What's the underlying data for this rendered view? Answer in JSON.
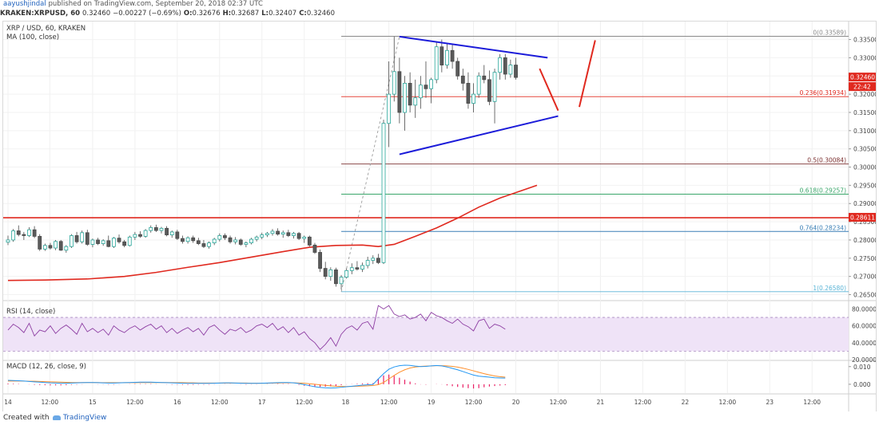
{
  "header": {
    "author": "aayushjindal",
    "published": "published on TradingView.com, September 20, 2018 02:37 UTC"
  },
  "ohlc_line": {
    "symbol": "KRAKEN:XRPUSD, 60",
    "last": "0.32460",
    "change": "−0.00227 (−0.69%)",
    "open_label": "O:",
    "open": "0.32676",
    "high_label": "H:",
    "high": "0.32687",
    "low_label": "L:",
    "low": "0.32407",
    "close_label": "C:",
    "close": "0.32460"
  },
  "legend": {
    "title": "XRP / USD, 60, KRAKEN",
    "ma": "MA (100, close)"
  },
  "colors": {
    "up": "#26a69a",
    "up_fill": "#ffffff",
    "candle": "#4a4a4a",
    "ma": "#e0291f",
    "trend": "#1b1bd9",
    "arrow": "#e0291f",
    "hline": "#e0291f",
    "rsi": "#8e3fa3",
    "rsi_band": "#efe3f7",
    "macd": "#2196f3",
    "signal": "#ff8f2c",
    "hist": "#e91e63"
  },
  "chart_data": [
    {
      "type": "candlestick",
      "title": "XRP / USD, 60, KRAKEN",
      "x_ticks": [
        "14",
        "12:00",
        "15",
        "12:00",
        "16",
        "12:00",
        "17",
        "12:00",
        "18",
        "12:00",
        "19",
        "12:00",
        "20",
        "12:00",
        "21",
        "12:00",
        "22",
        "12:00",
        "23",
        "12:00"
      ],
      "y_ticks": [
        "0.33500",
        "0.33000",
        "0.32500",
        "0.32000",
        "0.31500",
        "0.31000",
        "0.30500",
        "0.30000",
        "0.29500",
        "0.29000",
        "0.28500",
        "0.28000",
        "0.27500",
        "0.27000",
        "0.26500"
      ],
      "ylim": [
        0.2638,
        0.3395
      ],
      "price_tag": "0.32460",
      "time_tag": "22:42",
      "level_tag": "0.28611",
      "horizontal_line": 0.28611,
      "fib_levels": [
        {
          "label": "0(0.33589)",
          "value": 0.33589,
          "color": "#8a8a8a"
        },
        {
          "label": "0.236(0.31934)",
          "value": 0.31934,
          "color": "#e0291f"
        },
        {
          "label": "0.5(0.30084)",
          "value": 0.30084,
          "color": "#7a2e2e"
        },
        {
          "label": "0.618(0.29257)",
          "value": 0.29257,
          "color": "#3aa66a"
        },
        {
          "label": "0.764(0.28234)",
          "value": 0.28234,
          "color": "#3a7fb5"
        },
        {
          "label": "1(0.26580)",
          "value": 0.2658,
          "color": "#5ab4d6"
        }
      ],
      "fib_low": 0.2658,
      "fib_high": 0.33589,
      "candles": [
        [
          0.2794,
          0.2812,
          0.2786,
          0.28
        ],
        [
          0.28,
          0.283,
          0.2795,
          0.2825
        ],
        [
          0.2825,
          0.284,
          0.281,
          0.2815
        ],
        [
          0.2815,
          0.2822,
          0.28,
          0.2812
        ],
        [
          0.2812,
          0.2835,
          0.2808,
          0.2828
        ],
        [
          0.2828,
          0.2838,
          0.2805,
          0.281
        ],
        [
          0.281,
          0.2816,
          0.277,
          0.2775
        ],
        [
          0.2775,
          0.279,
          0.277,
          0.2785
        ],
        [
          0.2785,
          0.2792,
          0.2774,
          0.2778
        ],
        [
          0.2778,
          0.28,
          0.2772,
          0.2796
        ],
        [
          0.2796,
          0.28,
          0.277,
          0.2772
        ],
        [
          0.2772,
          0.2786,
          0.2765,
          0.2782
        ],
        [
          0.2782,
          0.2816,
          0.2778,
          0.2812
        ],
        [
          0.2812,
          0.2822,
          0.279,
          0.2795
        ],
        [
          0.2795,
          0.2826,
          0.279,
          0.282
        ],
        [
          0.282,
          0.2828,
          0.2784,
          0.2788
        ],
        [
          0.2788,
          0.2804,
          0.278,
          0.28
        ],
        [
          0.28,
          0.2806,
          0.2786,
          0.279
        ],
        [
          0.279,
          0.2802,
          0.2784,
          0.2798
        ],
        [
          0.2798,
          0.2812,
          0.278,
          0.2782
        ],
        [
          0.2782,
          0.2808,
          0.2778,
          0.2805
        ],
        [
          0.2805,
          0.2815,
          0.279,
          0.2795
        ],
        [
          0.2795,
          0.28,
          0.278,
          0.2785
        ],
        [
          0.2785,
          0.2812,
          0.2782,
          0.2808
        ],
        [
          0.2808,
          0.2822,
          0.28,
          0.2815
        ],
        [
          0.2815,
          0.2824,
          0.2806,
          0.281
        ],
        [
          0.281,
          0.283,
          0.2806,
          0.2826
        ],
        [
          0.2826,
          0.284,
          0.282,
          0.2834
        ],
        [
          0.2834,
          0.2842,
          0.2822,
          0.2826
        ],
        [
          0.2826,
          0.2836,
          0.2818,
          0.2832
        ],
        [
          0.2832,
          0.2838,
          0.281,
          0.2814
        ],
        [
          0.2814,
          0.2826,
          0.2806,
          0.2822
        ],
        [
          0.2822,
          0.2828,
          0.28,
          0.2804
        ],
        [
          0.2804,
          0.2812,
          0.279,
          0.2796
        ],
        [
          0.2796,
          0.281,
          0.279,
          0.2806
        ],
        [
          0.2806,
          0.2812,
          0.2792,
          0.2798
        ],
        [
          0.2798,
          0.2806,
          0.2786,
          0.279
        ],
        [
          0.279,
          0.28,
          0.2778,
          0.2782
        ],
        [
          0.2782,
          0.2796,
          0.2776,
          0.2792
        ],
        [
          0.2792,
          0.2806,
          0.2786,
          0.2802
        ],
        [
          0.2802,
          0.2818,
          0.2796,
          0.2812
        ],
        [
          0.2812,
          0.2818,
          0.28,
          0.2806
        ],
        [
          0.2806,
          0.2812,
          0.279,
          0.2795
        ],
        [
          0.2795,
          0.2808,
          0.2788,
          0.28
        ],
        [
          0.28,
          0.2804,
          0.2784,
          0.2788
        ],
        [
          0.2788,
          0.2796,
          0.278,
          0.2792
        ],
        [
          0.2792,
          0.2806,
          0.2788,
          0.2802
        ],
        [
          0.2802,
          0.2812,
          0.2796,
          0.2808
        ],
        [
          0.2808,
          0.282,
          0.2802,
          0.2814
        ],
        [
          0.2814,
          0.2822,
          0.2808,
          0.2818
        ],
        [
          0.2818,
          0.283,
          0.2812,
          0.2824
        ],
        [
          0.2824,
          0.2832,
          0.2812,
          0.2816
        ],
        [
          0.2816,
          0.2826,
          0.2806,
          0.282
        ],
        [
          0.282,
          0.2828,
          0.2808,
          0.2812
        ],
        [
          0.2812,
          0.2822,
          0.2804,
          0.2818
        ],
        [
          0.2818,
          0.2822,
          0.28,
          0.2804
        ],
        [
          0.2804,
          0.2812,
          0.2792,
          0.2808
        ],
        [
          0.2808,
          0.2812,
          0.2782,
          0.2786
        ],
        [
          0.2786,
          0.2792,
          0.2762,
          0.2766
        ],
        [
          0.2766,
          0.2774,
          0.2712,
          0.2722
        ],
        [
          0.2722,
          0.274,
          0.2692,
          0.27
        ],
        [
          0.27,
          0.2725,
          0.2688,
          0.2718
        ],
        [
          0.2718,
          0.2724,
          0.2672,
          0.268
        ],
        [
          0.268,
          0.2704,
          0.2664,
          0.2698
        ],
        [
          0.2698,
          0.2722,
          0.2694,
          0.2716
        ],
        [
          0.2716,
          0.2736,
          0.2706,
          0.2724
        ],
        [
          0.2724,
          0.2742,
          0.2716,
          0.272
        ],
        [
          0.272,
          0.2738,
          0.2712,
          0.273
        ],
        [
          0.273,
          0.2754,
          0.2722,
          0.2744
        ],
        [
          0.2744,
          0.2758,
          0.2734,
          0.275
        ],
        [
          0.275,
          0.2762,
          0.2734,
          0.2738
        ],
        [
          0.2738,
          0.313,
          0.2734,
          0.312
        ],
        [
          0.312,
          0.329,
          0.3055,
          0.32
        ],
        [
          0.32,
          0.3358,
          0.318,
          0.3262
        ],
        [
          0.3262,
          0.33,
          0.312,
          0.315
        ],
        [
          0.315,
          0.325,
          0.31,
          0.323
        ],
        [
          0.323,
          0.326,
          0.315,
          0.317
        ],
        [
          0.317,
          0.324,
          0.3135,
          0.319
        ],
        [
          0.319,
          0.325,
          0.316,
          0.3225
        ],
        [
          0.3225,
          0.329,
          0.319,
          0.3215
        ],
        [
          0.3215,
          0.3245,
          0.3175,
          0.324
        ],
        [
          0.324,
          0.3345,
          0.323,
          0.333
        ],
        [
          0.333,
          0.335,
          0.326,
          0.328
        ],
        [
          0.328,
          0.334,
          0.327,
          0.332
        ],
        [
          0.332,
          0.3338,
          0.327,
          0.329
        ],
        [
          0.329,
          0.33,
          0.324,
          0.325
        ],
        [
          0.325,
          0.327,
          0.321,
          0.323
        ],
        [
          0.323,
          0.326,
          0.316,
          0.3175
        ],
        [
          0.3175,
          0.323,
          0.315,
          0.32
        ],
        [
          0.32,
          0.326,
          0.319,
          0.325
        ],
        [
          0.325,
          0.328,
          0.323,
          0.324
        ],
        [
          0.324,
          0.3265,
          0.317,
          0.318
        ],
        [
          0.318,
          0.327,
          0.312,
          0.326
        ],
        [
          0.326,
          0.331,
          0.324,
          0.33
        ],
        [
          0.33,
          0.331,
          0.324,
          0.3255
        ],
        [
          0.3255,
          0.3295,
          0.3245,
          0.328
        ],
        [
          0.328,
          0.33,
          0.324,
          0.3246
        ]
      ],
      "ma100": [
        [
          0,
          0.2689
        ],
        [
          7,
          0.269
        ],
        [
          15,
          0.2693
        ],
        [
          22,
          0.27
        ],
        [
          28,
          0.2711
        ],
        [
          34,
          0.2725
        ],
        [
          40,
          0.2738
        ],
        [
          46,
          0.2753
        ],
        [
          52,
          0.2768
        ],
        [
          57,
          0.278
        ],
        [
          62,
          0.2785
        ],
        [
          67,
          0.2786
        ],
        [
          70,
          0.2782
        ],
        [
          73,
          0.2788
        ],
        [
          77,
          0.281
        ],
        [
          81,
          0.2833
        ],
        [
          85,
          0.286
        ],
        [
          89,
          0.289
        ],
        [
          93,
          0.2915
        ],
        [
          97,
          0.2935
        ],
        [
          100,
          0.295
        ]
      ],
      "triangle_upper": [
        [
          74,
          0.3358
        ],
        [
          102,
          0.33
        ]
      ],
      "triangle_lower": [
        [
          74,
          0.3035
        ],
        [
          104,
          0.314
        ]
      ],
      "fib_line_from": [
        63,
        0.2658
      ],
      "fib_line_to": [
        74,
        0.3358
      ],
      "arrow_down": [
        [
          100.5,
          0.327
        ],
        [
          104,
          0.3155
        ]
      ],
      "arrow_up": [
        [
          108,
          0.3165
        ],
        [
          111,
          0.3348
        ]
      ]
    },
    {
      "type": "line",
      "title": "RSI (14, close)",
      "y_ticks": [
        "80.0000",
        "60.0000",
        "40.0000",
        "20.0000"
      ],
      "ylim": [
        20,
        88
      ],
      "band": [
        30,
        70
      ],
      "series": [
        {
          "name": "RSI",
          "values": [
            55,
            62,
            58,
            52,
            63,
            48,
            55,
            53,
            60,
            51,
            57,
            61,
            56,
            50,
            63,
            53,
            57,
            52,
            56,
            49,
            60,
            55,
            52,
            57,
            60,
            55,
            59,
            62,
            56,
            60,
            52,
            57,
            51,
            55,
            58,
            53,
            57,
            49,
            58,
            61,
            55,
            50,
            56,
            54,
            58,
            52,
            55,
            60,
            62,
            58,
            63,
            55,
            59,
            52,
            58,
            49,
            53,
            45,
            40,
            32,
            38,
            46,
            36,
            50,
            57,
            60,
            55,
            63,
            65,
            56,
            84,
            80,
            84,
            74,
            71,
            73,
            68,
            70,
            74,
            66,
            76,
            72,
            70,
            66,
            63,
            68,
            62,
            59,
            54,
            66,
            68,
            57,
            62,
            60,
            56
          ]
        }
      ]
    },
    {
      "type": "line",
      "title": "MACD (12, 26, close, 9)",
      "y_ticks": [
        "0.010",
        "0.000"
      ],
      "ylim": [
        -0.005,
        0.0135
      ],
      "series": [
        {
          "name": "MACD",
          "values": [
            0.0022,
            0.0021,
            0.002,
            0.0018,
            0.0016,
            0.0014,
            0.0012,
            0.001,
            0.0008,
            0.0007,
            0.0006,
            0.0006,
            0.0007,
            0.0008,
            0.0009,
            0.001,
            0.001,
            0.0009,
            0.0008,
            0.0007,
            0.0007,
            0.0008,
            0.0009,
            0.001,
            0.0011,
            0.0012,
            0.0012,
            0.0012,
            0.0011,
            0.001,
            0.0009,
            0.0008,
            0.0007,
            0.0006,
            0.0005,
            0.0005,
            0.0005,
            0.0005,
            0.0005,
            0.0006,
            0.0007,
            0.0008,
            0.0008,
            0.0007,
            0.0006,
            0.0005,
            0.0005,
            0.0005,
            0.0006,
            0.0007,
            0.0008,
            0.0009,
            0.001,
            0.001,
            0.0008,
            0.0004,
            -0.0002,
            -0.0008,
            -0.0014,
            -0.0018,
            -0.002,
            -0.0021,
            -0.002,
            -0.0017,
            -0.0014,
            -0.0011,
            -0.0008,
            -0.0005,
            -0.0003,
            -0.0001,
            0.003,
            0.006,
            0.0085,
            0.0098,
            0.0105,
            0.0108,
            0.0107,
            0.0103,
            0.01,
            0.0101,
            0.0104,
            0.0106,
            0.0104,
            0.0098,
            0.009,
            0.0082,
            0.0072,
            0.0062,
            0.0052,
            0.0046,
            0.0043,
            0.004,
            0.0037,
            0.0036,
            0.0035
          ]
        },
        {
          "name": "Signal",
          "values": [
            0.0018,
            0.0018,
            0.0018,
            0.0018,
            0.0017,
            0.0017,
            0.0016,
            0.0015,
            0.0014,
            0.0013,
            0.0012,
            0.0011,
            0.001,
            0.001,
            0.001,
            0.001,
            0.001,
            0.001,
            0.0009,
            0.0009,
            0.0009,
            0.0009,
            0.0009,
            0.0009,
            0.0009,
            0.001,
            0.001,
            0.001,
            0.001,
            0.001,
            0.001,
            0.001,
            0.0009,
            0.0009,
            0.0008,
            0.0008,
            0.0007,
            0.0007,
            0.0007,
            0.0007,
            0.0007,
            0.0007,
            0.0007,
            0.0007,
            0.0007,
            0.0007,
            0.0006,
            0.0006,
            0.0006,
            0.0006,
            0.0007,
            0.0007,
            0.0008,
            0.0008,
            0.0008,
            0.0007,
            0.0006,
            0.0003,
            0.0,
            -0.0003,
            -0.0006,
            -0.0009,
            -0.0011,
            -0.0012,
            -0.0013,
            -0.0012,
            -0.0011,
            -0.001,
            -0.0009,
            -0.0007,
            -0.0002,
            0.001,
            0.003,
            0.005,
            0.0068,
            0.0082,
            0.0092,
            0.0098,
            0.0101,
            0.0103,
            0.0104,
            0.0105,
            0.0105,
            0.0104,
            0.0101,
            0.0097,
            0.0091,
            0.0084,
            0.0076,
            0.0068,
            0.006,
            0.0053,
            0.0047,
            0.0043,
            0.004
          ]
        }
      ]
    }
  ]
}
